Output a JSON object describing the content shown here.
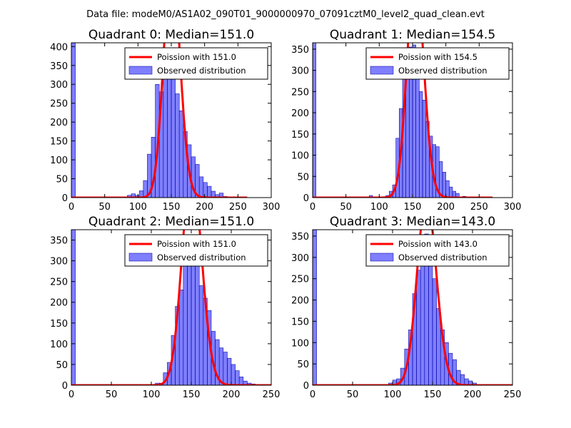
{
  "figure": {
    "suptitle": "Data file: modeM0/AS1A02_090T01_9000000970_07091cztM0_level2_quad_clean.evt"
  },
  "chart_data": [
    {
      "type": "bar",
      "title": "Quadrant 0: Median=151.0",
      "mean": 151.0,
      "xlim": [
        0,
        300
      ],
      "ylim": [
        0,
        410
      ],
      "xticks": [
        0,
        50,
        100,
        150,
        200,
        250,
        300
      ],
      "yticks": [
        0,
        50,
        100,
        150,
        200,
        250,
        300,
        350,
        400
      ],
      "bin_width": 6,
      "bins": [
        {
          "x": 0,
          "count": 410
        },
        {
          "x": 84,
          "count": 6
        },
        {
          "x": 90,
          "count": 10
        },
        {
          "x": 96,
          "count": 6
        },
        {
          "x": 102,
          "count": 18
        },
        {
          "x": 108,
          "count": 45
        },
        {
          "x": 114,
          "count": 115
        },
        {
          "x": 120,
          "count": 160
        },
        {
          "x": 126,
          "count": 300
        },
        {
          "x": 132,
          "count": 280
        },
        {
          "x": 138,
          "count": 350
        },
        {
          "x": 144,
          "count": 365
        },
        {
          "x": 150,
          "count": 340
        },
        {
          "x": 156,
          "count": 275
        },
        {
          "x": 162,
          "count": 230
        },
        {
          "x": 168,
          "count": 175
        },
        {
          "x": 174,
          "count": 140
        },
        {
          "x": 180,
          "count": 108
        },
        {
          "x": 186,
          "count": 88
        },
        {
          "x": 192,
          "count": 55
        },
        {
          "x": 198,
          "count": 40
        },
        {
          "x": 204,
          "count": 30
        },
        {
          "x": 210,
          "count": 17
        },
        {
          "x": 216,
          "count": 8
        },
        {
          "x": 222,
          "count": 12
        },
        {
          "x": 228,
          "count": 3
        },
        {
          "x": 234,
          "count": 2
        }
      ],
      "legend": [
        "Poission with 151.0",
        "Observed distribution"
      ]
    },
    {
      "type": "bar",
      "title": "Quadrant 1: Median=154.5",
      "mean": 154.5,
      "xlim": [
        0,
        300
      ],
      "ylim": [
        0,
        365
      ],
      "xticks": [
        0,
        50,
        100,
        150,
        200,
        250,
        300
      ],
      "yticks": [
        0,
        50,
        100,
        150,
        200,
        250,
        300,
        350
      ],
      "bin_width": 5,
      "bins": [
        {
          "x": 0,
          "count": 365
        },
        {
          "x": 85,
          "count": 5
        },
        {
          "x": 110,
          "count": 5
        },
        {
          "x": 115,
          "count": 15
        },
        {
          "x": 120,
          "count": 30
        },
        {
          "x": 125,
          "count": 140
        },
        {
          "x": 130,
          "count": 210
        },
        {
          "x": 135,
          "count": 280
        },
        {
          "x": 140,
          "count": 340
        },
        {
          "x": 145,
          "count": 355
        },
        {
          "x": 150,
          "count": 360
        },
        {
          "x": 155,
          "count": 300
        },
        {
          "x": 160,
          "count": 250
        },
        {
          "x": 165,
          "count": 230
        },
        {
          "x": 170,
          "count": 180
        },
        {
          "x": 175,
          "count": 145
        },
        {
          "x": 180,
          "count": 125
        },
        {
          "x": 185,
          "count": 120
        },
        {
          "x": 190,
          "count": 85
        },
        {
          "x": 195,
          "count": 60
        },
        {
          "x": 200,
          "count": 40
        },
        {
          "x": 205,
          "count": 25
        },
        {
          "x": 210,
          "count": 15
        },
        {
          "x": 215,
          "count": 10
        },
        {
          "x": 225,
          "count": 3
        }
      ],
      "legend": [
        "Poission with 154.5",
        "Observed distribution"
      ]
    },
    {
      "type": "bar",
      "title": "Quadrant 2: Median=151.0",
      "mean": 151.0,
      "xlim": [
        0,
        250
      ],
      "ylim": [
        0,
        375
      ],
      "xticks": [
        0,
        50,
        100,
        150,
        200,
        250
      ],
      "yticks": [
        0,
        50,
        100,
        150,
        200,
        250,
        300,
        350
      ],
      "bin_width": 5,
      "bins": [
        {
          "x": 0,
          "count": 375
        },
        {
          "x": 90,
          "count": 2
        },
        {
          "x": 105,
          "count": 5
        },
        {
          "x": 110,
          "count": 5
        },
        {
          "x": 115,
          "count": 30
        },
        {
          "x": 120,
          "count": 55
        },
        {
          "x": 125,
          "count": 120
        },
        {
          "x": 130,
          "count": 190
        },
        {
          "x": 135,
          "count": 230
        },
        {
          "x": 140,
          "count": 290
        },
        {
          "x": 145,
          "count": 320
        },
        {
          "x": 150,
          "count": 355
        },
        {
          "x": 155,
          "count": 360
        },
        {
          "x": 160,
          "count": 240
        },
        {
          "x": 165,
          "count": 210
        },
        {
          "x": 170,
          "count": 180
        },
        {
          "x": 175,
          "count": 130
        },
        {
          "x": 180,
          "count": 110
        },
        {
          "x": 185,
          "count": 90
        },
        {
          "x": 190,
          "count": 80
        },
        {
          "x": 195,
          "count": 65
        },
        {
          "x": 200,
          "count": 50
        },
        {
          "x": 205,
          "count": 35
        },
        {
          "x": 210,
          "count": 20
        },
        {
          "x": 215,
          "count": 10
        },
        {
          "x": 220,
          "count": 5
        },
        {
          "x": 225,
          "count": 3
        }
      ],
      "legend": [
        "Poission with 151.0",
        "Observed distribution"
      ]
    },
    {
      "type": "bar",
      "title": "Quadrant 3: Median=143.0",
      "mean": 143.0,
      "xlim": [
        0,
        250
      ],
      "ylim": [
        0,
        365
      ],
      "xticks": [
        0,
        50,
        100,
        150,
        200,
        250
      ],
      "yticks": [
        0,
        50,
        100,
        150,
        200,
        250,
        300,
        350
      ],
      "bin_width": 5,
      "bins": [
        {
          "x": 0,
          "count": 365
        },
        {
          "x": 80,
          "count": 2
        },
        {
          "x": 95,
          "count": 5
        },
        {
          "x": 100,
          "count": 12
        },
        {
          "x": 105,
          "count": 15
        },
        {
          "x": 110,
          "count": 40
        },
        {
          "x": 115,
          "count": 85
        },
        {
          "x": 120,
          "count": 130
        },
        {
          "x": 125,
          "count": 215
        },
        {
          "x": 130,
          "count": 270
        },
        {
          "x": 135,
          "count": 320
        },
        {
          "x": 140,
          "count": 355
        },
        {
          "x": 145,
          "count": 300
        },
        {
          "x": 150,
          "count": 250
        },
        {
          "x": 155,
          "count": 180
        },
        {
          "x": 160,
          "count": 130
        },
        {
          "x": 165,
          "count": 100
        },
        {
          "x": 170,
          "count": 75
        },
        {
          "x": 175,
          "count": 60
        },
        {
          "x": 180,
          "count": 35
        },
        {
          "x": 185,
          "count": 25
        },
        {
          "x": 190,
          "count": 15
        },
        {
          "x": 195,
          "count": 10
        },
        {
          "x": 200,
          "count": 5
        }
      ],
      "legend": [
        "Poission with 143.0",
        "Observed distribution"
      ]
    }
  ]
}
